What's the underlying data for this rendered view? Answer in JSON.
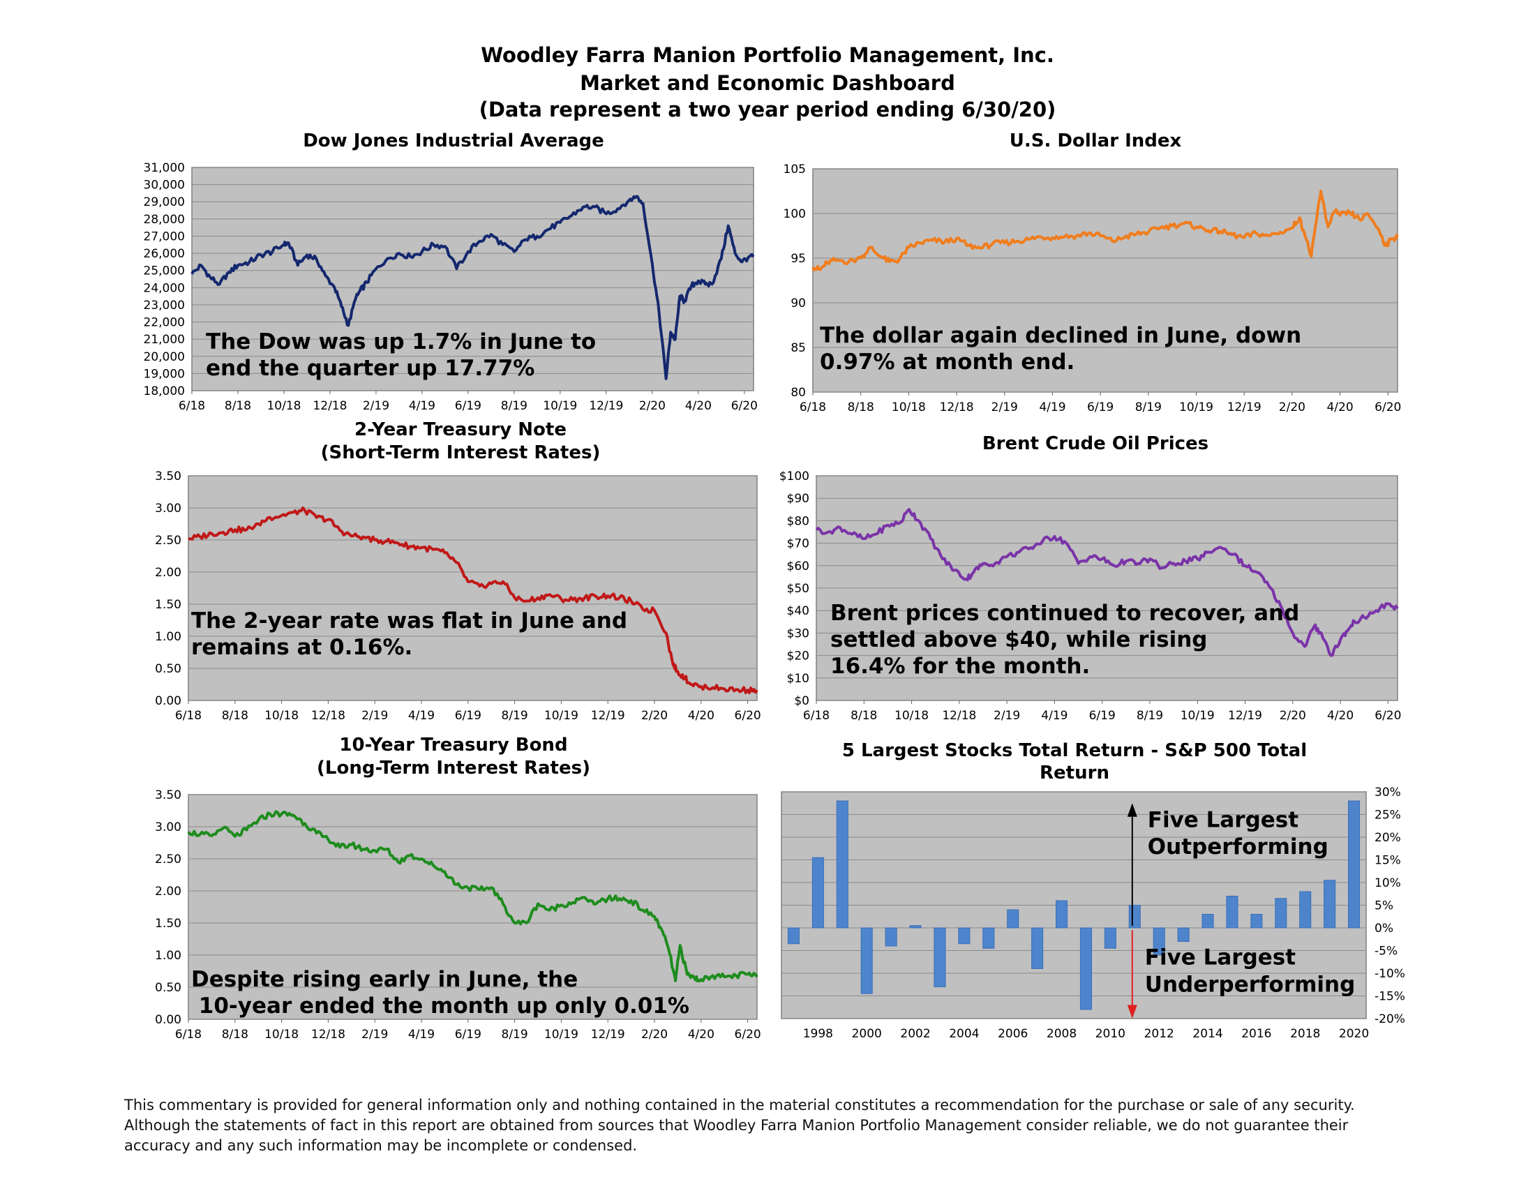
{
  "header": {
    "line1": "Woodley Farra Manion Portfolio Management, Inc.",
    "line2": "Market and Economic Dashboard",
    "line3": "(Data represent a two year period ending 6/30/20)"
  },
  "footer": {
    "line1": "This commentary is provided for general information only and nothing contained in the material constitutes a recommendation for the purchase or sale of any security.",
    "line2": "Although the statements of fact in this report are obtained from sources that Woodley Farra Manion Portfolio Management consider reliable, we do not guarantee their",
    "line3": "accuracy and any such information may be incomplete or condensed."
  },
  "chart_data": [
    {
      "id": "dow",
      "type": "line",
      "title": "Dow Jones Industrial Average",
      "color": "#14286e",
      "ylim": [
        18000,
        31000
      ],
      "yticks": [
        18000,
        19000,
        20000,
        21000,
        22000,
        23000,
        24000,
        25000,
        26000,
        27000,
        28000,
        29000,
        30000,
        31000
      ],
      "ytick_labels": [
        "18,000",
        "19,000",
        "20,000",
        "21,000",
        "22,000",
        "23,000",
        "24,000",
        "25,000",
        "26,000",
        "27,000",
        "28,000",
        "29,000",
        "30,000",
        "31,000"
      ],
      "xlim": [
        0,
        24.4
      ],
      "xticks": [
        0,
        2,
        4,
        6,
        8,
        10,
        12,
        14,
        16,
        18,
        20,
        22,
        24
      ],
      "xtick_labels": [
        "6/18",
        "8/18",
        "10/18",
        "12/18",
        "2/19",
        "4/19",
        "6/19",
        "8/19",
        "10/19",
        "12/19",
        "2/20",
        "4/20",
        "6/20"
      ],
      "x": [
        0,
        0.4,
        0.8,
        1.2,
        1.6,
        2,
        2.5,
        3,
        3.5,
        4,
        4.2,
        4.6,
        5,
        5.4,
        5.8,
        6.2,
        6.5,
        6.8,
        7.1,
        7.3,
        7.6,
        8,
        8.5,
        9,
        9.5,
        10,
        10.5,
        11,
        11.5,
        12,
        12.5,
        13,
        13.5,
        14,
        14.5,
        15,
        15.5,
        16,
        16.5,
        17,
        17.5,
        18,
        18.5,
        19,
        19.3,
        19.6,
        20,
        20.3,
        20.6,
        20.8,
        21,
        21.2,
        21.4,
        21.7,
        22,
        22.3,
        22.6,
        23,
        23.3,
        23.6,
        23.9,
        24.2,
        24.4
      ],
      "values": [
        24800,
        25300,
        24600,
        24200,
        24900,
        25300,
        25500,
        25900,
        26100,
        26500,
        26600,
        25300,
        25900,
        25700,
        24700,
        24000,
        22900,
        21800,
        23300,
        23800,
        24300,
        25100,
        25700,
        26000,
        25800,
        26100,
        26500,
        26400,
        25100,
        26100,
        26700,
        27100,
        26500,
        26100,
        26800,
        27000,
        27400,
        27800,
        28200,
        28700,
        28700,
        28300,
        28600,
        29100,
        29300,
        28900,
        25400,
        22500,
        18700,
        21400,
        21000,
        23500,
        23200,
        24100,
        24400,
        24200,
        24200,
        25700,
        27600,
        26000,
        25500,
        25800,
        25800
      ],
      "annotation": [
        "The Dow was up 1.7% in June to",
        "end the quarter up 17.77%"
      ]
    },
    {
      "id": "usd",
      "type": "line",
      "title": "U.S. Dollar Index",
      "color": "#f07d1e",
      "ylim": [
        80,
        105
      ],
      "yticks": [
        80,
        85,
        90,
        95,
        100,
        105
      ],
      "ytick_labels": [
        "80",
        "85",
        "90",
        "95",
        "100",
        "105"
      ],
      "xlim": [
        0,
        24.4
      ],
      "xticks": [
        0,
        2,
        4,
        6,
        8,
        10,
        12,
        14,
        16,
        18,
        20,
        22,
        24
      ],
      "xtick_labels": [
        "6/18",
        "8/18",
        "10/18",
        "12/18",
        "2/19",
        "4/19",
        "6/19",
        "8/19",
        "10/19",
        "12/19",
        "2/20",
        "4/20",
        "6/20"
      ],
      "x": [
        0,
        0.3,
        0.6,
        1,
        1.5,
        2,
        2.4,
        2.8,
        3.2,
        3.6,
        4,
        4.5,
        5,
        5.5,
        6,
        6.5,
        7,
        7.5,
        8,
        8.5,
        9,
        9.5,
        10,
        10.5,
        11,
        11.5,
        12,
        12.5,
        13,
        13.5,
        14,
        14.5,
        15,
        15.5,
        16,
        16.5,
        17,
        17.5,
        18,
        18.5,
        19,
        19.5,
        20,
        20.3,
        20.5,
        20.8,
        21,
        21.2,
        21.5,
        21.8,
        22,
        22.4,
        22.8,
        23.2,
        23.6,
        23.9,
        24.2,
        24.4
      ],
      "values": [
        94,
        93.7,
        94.5,
        94.8,
        94.6,
        95,
        96.2,
        95.2,
        94.6,
        94.8,
        96.2,
        96.7,
        97,
        96.8,
        97.2,
        96.4,
        96.1,
        96.6,
        96.7,
        96.9,
        97.1,
        97.4,
        97.3,
        97.4,
        97.5,
        97.8,
        97.5,
        96.9,
        97.3,
        97.7,
        97.9,
        98.4,
        98.6,
        98.9,
        98.5,
        98.1,
        98,
        97.6,
        97.3,
        97.8,
        97.5,
        97.9,
        98.4,
        99.5,
        97.9,
        95.2,
        99,
        102.5,
        98.5,
        100.3,
        99.8,
        100.1,
        99.4,
        99.8,
        98.3,
        96.4,
        97.2,
        97.4
      ],
      "annotation": [
        "The dollar again declined in June, down",
        "0.97% at month end."
      ]
    },
    {
      "id": "t2",
      "type": "line",
      "title": "2-Year Treasury Note",
      "subtitle": "(Short-Term Interest Rates)",
      "color": "#c01818",
      "ylim": [
        0,
        3.5
      ],
      "yticks": [
        0,
        0.5,
        1,
        1.5,
        2,
        2.5,
        3,
        3.5
      ],
      "ytick_labels": [
        "0.00",
        "0.50",
        "1.00",
        "1.50",
        "2.00",
        "2.50",
        "3.00",
        "3.50"
      ],
      "xlim": [
        0,
        24.4
      ],
      "xticks": [
        0,
        2,
        4,
        6,
        8,
        10,
        12,
        14,
        16,
        18,
        20,
        22,
        24
      ],
      "xtick_labels": [
        "6/18",
        "8/18",
        "10/18",
        "12/18",
        "2/19",
        "4/19",
        "6/19",
        "8/19",
        "10/19",
        "12/19",
        "2/20",
        "4/20",
        "6/20"
      ],
      "x": [
        0,
        0.5,
        1,
        1.5,
        2,
        2.5,
        3,
        3.5,
        4,
        4.5,
        5,
        5.5,
        6,
        6.5,
        7,
        7.5,
        8,
        8.5,
        9,
        9.5,
        10,
        10.5,
        11,
        11.5,
        12,
        12.5,
        13,
        13.5,
        14,
        14.5,
        15,
        15.5,
        16,
        16.5,
        17,
        17.5,
        18,
        18.5,
        19,
        19.5,
        20,
        20.5,
        20.8,
        21,
        21.3,
        21.6,
        22,
        22.5,
        23,
        23.5,
        24,
        24.4
      ],
      "values": [
        2.52,
        2.55,
        2.6,
        2.62,
        2.66,
        2.66,
        2.75,
        2.85,
        2.88,
        2.93,
        2.96,
        2.85,
        2.82,
        2.65,
        2.56,
        2.55,
        2.5,
        2.48,
        2.45,
        2.4,
        2.38,
        2.35,
        2.3,
        2.15,
        1.85,
        1.78,
        1.82,
        1.85,
        1.6,
        1.55,
        1.6,
        1.65,
        1.58,
        1.57,
        1.6,
        1.62,
        1.63,
        1.6,
        1.55,
        1.42,
        1.4,
        1.05,
        0.55,
        0.45,
        0.35,
        0.25,
        0.22,
        0.2,
        0.18,
        0.17,
        0.16,
        0.16
      ],
      "annotation": [
        "The 2-year rate was flat in June and",
        "remains at 0.16%."
      ]
    },
    {
      "id": "brent",
      "type": "line",
      "title": "Brent Crude Oil Prices",
      "color": "#7a33a8",
      "ylim": [
        0,
        100
      ],
      "yticks": [
        0,
        10,
        20,
        30,
        40,
        50,
        60,
        70,
        80,
        90,
        100
      ],
      "ytick_labels": [
        "$0",
        "$10",
        "$20",
        "$30",
        "$40",
        "$50",
        "$60",
        "$70",
        "$80",
        "$90",
        "$100"
      ],
      "xlim": [
        0,
        24.4
      ],
      "xticks": [
        0,
        2,
        4,
        6,
        8,
        10,
        12,
        14,
        16,
        18,
        20,
        22,
        24
      ],
      "xtick_labels": [
        "6/18",
        "8/18",
        "10/18",
        "12/18",
        "2/19",
        "4/19",
        "6/19",
        "8/19",
        "10/19",
        "12/19",
        "2/20",
        "4/20",
        "6/20"
      ],
      "x": [
        0,
        0.5,
        1,
        1.5,
        2,
        2.5,
        3,
        3.5,
        3.9,
        4.3,
        4.8,
        5.3,
        5.8,
        6.3,
        6.6,
        7,
        7.5,
        8,
        8.5,
        9,
        9.5,
        10,
        10.5,
        11,
        11.5,
        12,
        12.5,
        13,
        13.5,
        14,
        14.5,
        15,
        15.5,
        16,
        16.5,
        17,
        17.5,
        18,
        18.5,
        19,
        19.5,
        20,
        20.5,
        20.9,
        21.2,
        21.6,
        22,
        22.3,
        22.6,
        23,
        23.5,
        24,
        24.4
      ],
      "values": [
        76,
        75,
        77,
        74,
        72,
        74,
        78,
        79,
        85,
        80,
        72,
        63,
        58,
        54,
        57,
        61,
        61,
        64,
        66,
        68,
        71,
        73,
        70,
        61,
        64,
        63,
        60,
        62,
        61,
        63,
        59,
        61,
        62,
        63,
        66,
        68,
        65,
        60,
        57,
        51,
        42,
        30,
        24,
        33,
        30,
        20,
        27,
        31,
        35,
        37,
        40,
        43,
        41
      ],
      "annotation": [
        "Brent prices continued to recover, and",
        "settled above $40, while rising",
        "16.4% for the month."
      ]
    },
    {
      "id": "t10",
      "type": "line",
      "title": "10-Year Treasury Bond",
      "subtitle": "(Long-Term Interest Rates)",
      "color": "#1e8c1e",
      "ylim": [
        0,
        3.5
      ],
      "yticks": [
        0,
        0.5,
        1,
        1.5,
        2,
        2.5,
        3,
        3.5
      ],
      "ytick_labels": [
        "0.00",
        "0.50",
        "1.00",
        "1.50",
        "2.00",
        "2.50",
        "3.00",
        "3.50"
      ],
      "xlim": [
        0,
        24.4
      ],
      "xticks": [
        0,
        2,
        4,
        6,
        8,
        10,
        12,
        14,
        16,
        18,
        20,
        22,
        24
      ],
      "xtick_labels": [
        "6/18",
        "8/18",
        "10/18",
        "12/18",
        "2/19",
        "4/19",
        "6/19",
        "8/19",
        "10/19",
        "12/19",
        "2/20",
        "4/20",
        "6/20"
      ],
      "x": [
        0,
        0.5,
        1,
        1.5,
        2,
        2.5,
        3,
        3.5,
        4,
        4.5,
        5,
        5.5,
        6,
        6.5,
        7,
        7.5,
        8,
        8.5,
        9,
        9.5,
        10,
        10.5,
        11,
        11.5,
        12,
        12.5,
        13,
        13.5,
        14,
        14.5,
        15,
        15.5,
        16,
        16.5,
        17,
        17.5,
        18,
        18.5,
        19,
        19.5,
        20,
        20.3,
        20.6,
        20.9,
        21.1,
        21.4,
        21.7,
        22,
        22.5,
        23,
        23.5,
        24,
        24.4
      ],
      "values": [
        2.92,
        2.88,
        2.86,
        2.98,
        2.85,
        2.95,
        3.1,
        3.2,
        3.2,
        3.18,
        3.05,
        2.9,
        2.8,
        2.68,
        2.72,
        2.65,
        2.63,
        2.65,
        2.45,
        2.55,
        2.5,
        2.4,
        2.3,
        2.1,
        2.05,
        2.02,
        2.05,
        1.8,
        1.5,
        1.5,
        1.8,
        1.7,
        1.78,
        1.82,
        1.9,
        1.8,
        1.88,
        1.88,
        1.85,
        1.7,
        1.6,
        1.4,
        1.1,
        0.6,
        1.15,
        0.7,
        0.65,
        0.62,
        0.68,
        0.66,
        0.68,
        0.7,
        0.66
      ],
      "annotation": [
        "Despite rising early in June, the",
        " 10-year ended the month up only 0.01%"
      ]
    },
    {
      "id": "largest5",
      "type": "bar",
      "title": "5 Largest Stocks Total Return - S&P 500 Total",
      "title2": "Return",
      "color": "#4e84cc",
      "ylim": [
        -20,
        30
      ],
      "yticks": [
        -20,
        -15,
        -10,
        -5,
        0,
        5,
        10,
        15,
        20,
        25,
        30
      ],
      "ytick_labels": [
        "-20%",
        "-15%",
        "-10%",
        "-5%",
        "0%",
        "5%",
        "10%",
        "15%",
        "20%",
        "25%",
        "30%"
      ],
      "categories": [
        1997,
        1998,
        1999,
        2000,
        2001,
        2002,
        2003,
        2004,
        2005,
        2006,
        2007,
        2008,
        2009,
        2010,
        2011,
        2012,
        2013,
        2014,
        2015,
        2016,
        2017,
        2018,
        2019,
        2020
      ],
      "xtick_labels": [
        "1998",
        "2000",
        "2002",
        "2004",
        "2006",
        "2008",
        "2010",
        "2012",
        "2014",
        "2016",
        "2018",
        "2020"
      ],
      "values": [
        -3.5,
        15.5,
        28,
        -14.5,
        -4,
        0.5,
        -13,
        -3.5,
        -4.5,
        4,
        -9,
        6,
        -18,
        -4.5,
        5,
        -6,
        -3,
        3,
        7,
        3,
        6.5,
        8,
        10.5,
        28
      ],
      "annotation_up": [
        "Five Largest",
        "Outperforming"
      ],
      "annotation_down": [
        "Five Largest",
        "Underperforming"
      ]
    }
  ]
}
